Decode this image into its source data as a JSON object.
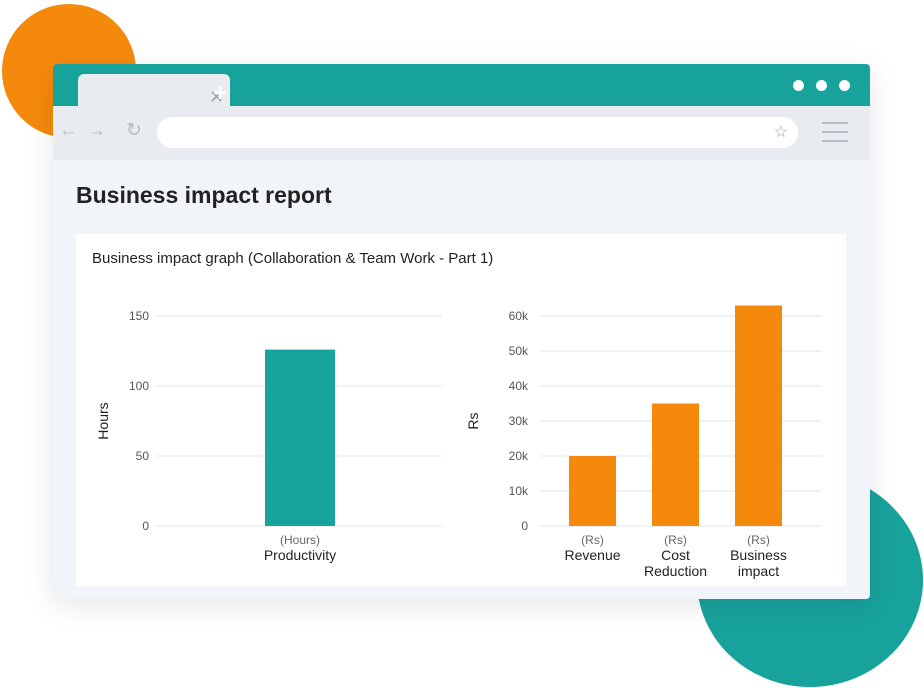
{
  "page": {
    "title": "Business impact report",
    "graph_title": "Business impact graph (Collaboration & Team Work - Part 1)"
  },
  "browser": {
    "tab_close_icon": "✕",
    "new_tab_icon": "+",
    "back_icon": "←",
    "forward_icon": "→",
    "reload_icon": "↻",
    "star_icon": "☆"
  },
  "colors": {
    "teal": "#18a29c",
    "orange": "#f5890c"
  },
  "chart_data": [
    {
      "type": "bar",
      "ylabel": "Hours",
      "ylim": [
        0,
        150
      ],
      "yticks": [
        "0",
        "50",
        "100",
        "150"
      ],
      "categories": [
        {
          "unit": "(Hours)",
          "label": "Productivity"
        }
      ],
      "values": [
        126
      ],
      "color": "#18a29c"
    },
    {
      "type": "bar",
      "ylabel": "Rs",
      "ylim": [
        0,
        60000
      ],
      "yticks": [
        "0",
        "10k",
        "20k",
        "30k",
        "40k",
        "50k",
        "60k"
      ],
      "categories": [
        {
          "unit": "(Rs)",
          "label": "Revenue"
        },
        {
          "unit": "(Rs)",
          "label": "Cost Reduction"
        },
        {
          "unit": "(Rs)",
          "label": "Business impact"
        }
      ],
      "values": [
        20000,
        35000,
        63000
      ],
      "color": "#f5890c"
    }
  ]
}
